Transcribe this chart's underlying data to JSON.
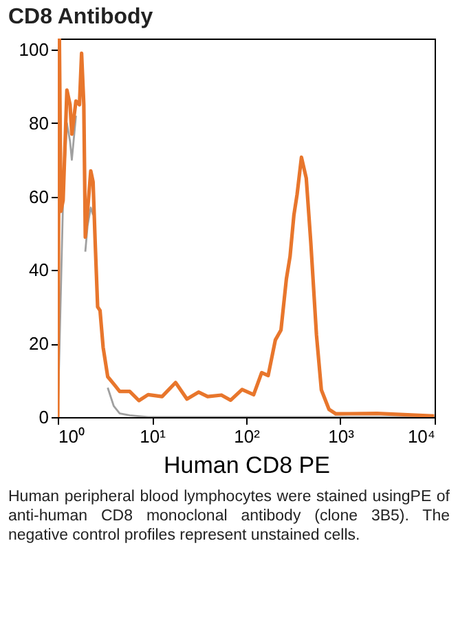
{
  "chart_data": {
    "type": "line",
    "title": "CD8 Antibody",
    "xlabel": "Human CD8  PE",
    "log": "x",
    "xlim": [
      1,
      10000
    ],
    "ylim": [
      0,
      103
    ],
    "xticks": [
      {
        "value": 1,
        "label": "10⁰"
      },
      {
        "value": 10,
        "label": "10¹"
      },
      {
        "value": 100,
        "label": "10²"
      },
      {
        "value": 1000,
        "label": "10³"
      },
      {
        "value": 10000,
        "label": "10⁴"
      }
    ],
    "yticks": [
      0,
      20,
      40,
      60,
      80,
      100
    ],
    "grid": false,
    "annotations": [
      "Human peripheral blood lymphocytes were stained usingPE of anti-human CD8 monoclonal antibody (clone 3B5). The negative control profiles represent unstained cells."
    ],
    "series": [
      {
        "color": "#a0a0a0",
        "x": [
          1,
          1.08,
          1.14,
          1.25,
          1.35,
          1.41,
          1.56,
          1.79,
          1.89,
          1.96,
          2.07,
          2.24,
          2.37,
          2.5,
          2.65,
          2.81,
          3.03,
          3.39,
          3.93,
          4.54,
          5.8,
          9.1,
          10000
        ],
        "values": [
          0,
          35,
          60,
          80,
          75,
          70,
          82,
          null,
          null,
          45,
          52,
          57,
          55,
          null,
          null,
          null,
          null,
          8,
          3,
          1,
          0.5,
          0,
          0
        ]
      },
      {
        "color": "#e8762c",
        "x": [
          1,
          1.04,
          1.08,
          1.14,
          1.25,
          1.35,
          1.41,
          1.56,
          1.7,
          1.79,
          1.89,
          1.96,
          2.07,
          2.24,
          2.37,
          2.5,
          2.65,
          2.81,
          3.03,
          3.39,
          3.93,
          4.54,
          5.8,
          7.27,
          9.1,
          12.8,
          17.8,
          23.5,
          31.2,
          39,
          54.6,
          68.4,
          90.4,
          120,
          146,
          171,
          204,
          234,
          267,
          292,
          321,
          347,
          386,
          434,
          485,
          557,
          628,
          757,
          894,
          2450,
          9900
        ],
        "values": [
          0,
          103,
          56,
          59,
          89,
          85,
          77,
          86,
          85,
          99,
          85,
          49,
          56,
          67,
          64,
          47,
          30,
          29,
          19,
          11,
          9,
          7,
          7,
          4.5,
          6.1,
          5.6,
          9.4,
          4.9,
          6.8,
          5.6,
          6,
          4.6,
          7.5,
          6.1,
          12.1,
          11.3,
          21,
          23.7,
          37.6,
          43.7,
          55,
          60.6,
          70.7,
          65,
          47.5,
          22.4,
          7.4,
          2.1,
          0.9,
          1,
          0.3
        ]
      }
    ]
  }
}
